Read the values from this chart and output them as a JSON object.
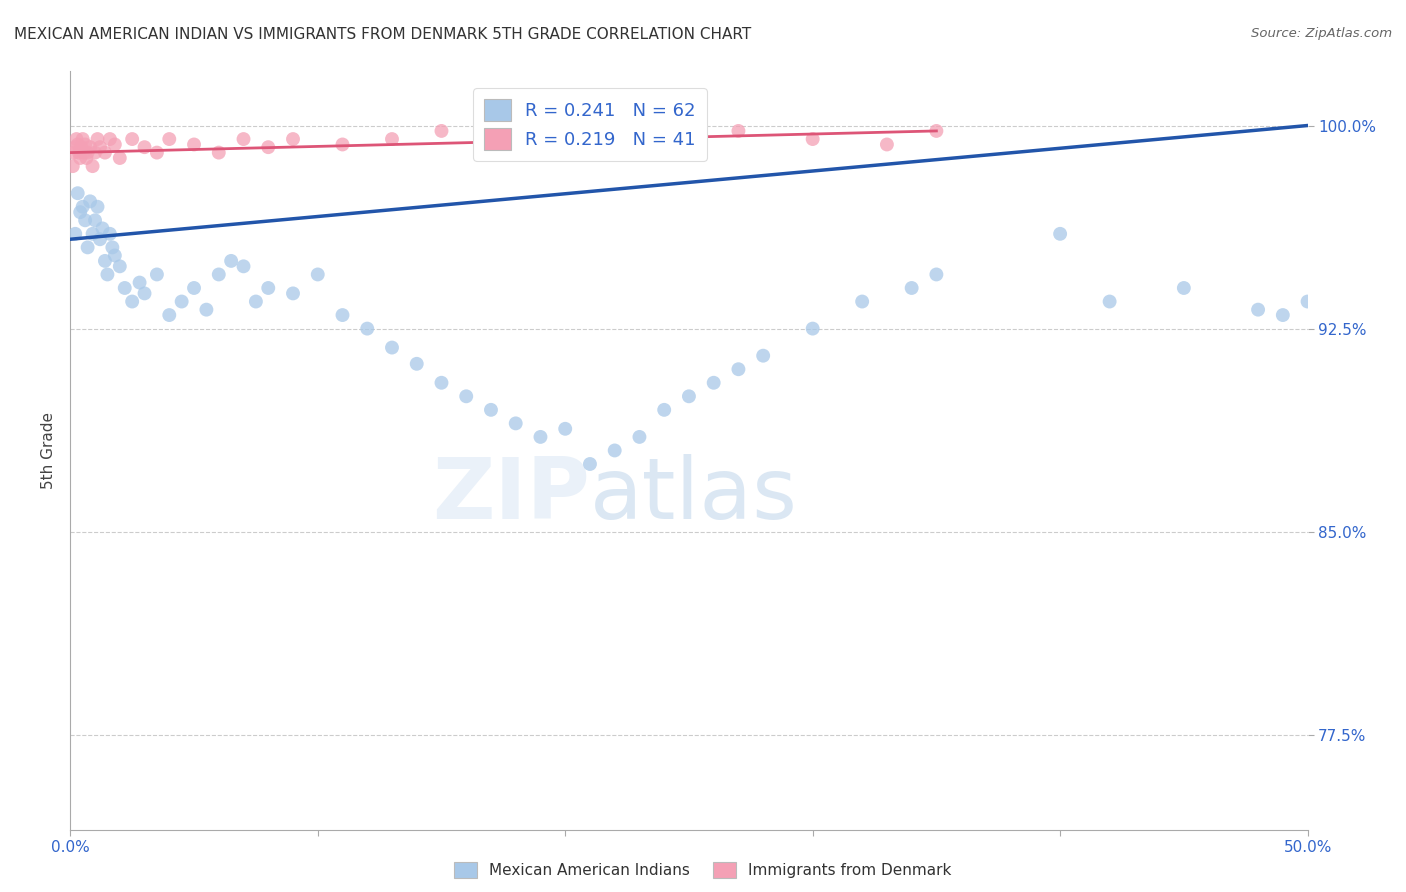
{
  "title": "MEXICAN AMERICAN INDIAN VS IMMIGRANTS FROM DENMARK 5TH GRADE CORRELATION CHART",
  "source": "Source: ZipAtlas.com",
  "ylabel": "5th Grade",
  "xlim": [
    0.0,
    50.0
  ],
  "ylim": [
    74.0,
    102.0
  ],
  "y_ticks": [
    77.5,
    85.0,
    92.5,
    100.0
  ],
  "y_tick_labels": [
    "77.5%",
    "85.0%",
    "92.5%",
    "100.0%"
  ],
  "blue_color": "#a8c8e8",
  "blue_line_color": "#2255aa",
  "pink_color": "#f4a0b5",
  "pink_line_color": "#dd5577",
  "R_blue": 0.241,
  "N_blue": 62,
  "R_pink": 0.219,
  "N_pink": 41,
  "watermark_zip": "ZIP",
  "watermark_atlas": "atlas",
  "grid_color": "#cccccc",
  "blue_line_x0": 0.0,
  "blue_line_y0": 95.8,
  "blue_line_x1": 50.0,
  "blue_line_y1": 100.0,
  "pink_line_x0": 0.0,
  "pink_line_y0": 99.0,
  "pink_line_x1": 35.0,
  "pink_line_y1": 99.8,
  "blue_points_x": [
    0.2,
    0.3,
    0.4,
    0.5,
    0.6,
    0.7,
    0.8,
    0.9,
    1.0,
    1.1,
    1.2,
    1.3,
    1.4,
    1.5,
    1.6,
    1.7,
    1.8,
    2.0,
    2.2,
    2.5,
    2.8,
    3.0,
    3.5,
    4.0,
    4.5,
    5.0,
    5.5,
    6.0,
    6.5,
    7.0,
    7.5,
    8.0,
    9.0,
    10.0,
    11.0,
    12.0,
    13.0,
    14.0,
    15.0,
    16.0,
    17.0,
    18.0,
    19.0,
    20.0,
    21.0,
    22.0,
    23.0,
    24.0,
    25.0,
    26.0,
    27.0,
    28.0,
    30.0,
    32.0,
    34.0,
    35.0,
    40.0,
    42.0,
    45.0,
    48.0,
    49.0,
    50.0
  ],
  "blue_points_y": [
    96.0,
    97.5,
    96.8,
    97.0,
    96.5,
    95.5,
    97.2,
    96.0,
    96.5,
    97.0,
    95.8,
    96.2,
    95.0,
    94.5,
    96.0,
    95.5,
    95.2,
    94.8,
    94.0,
    93.5,
    94.2,
    93.8,
    94.5,
    93.0,
    93.5,
    94.0,
    93.2,
    94.5,
    95.0,
    94.8,
    93.5,
    94.0,
    93.8,
    94.5,
    93.0,
    92.5,
    91.8,
    91.2,
    90.5,
    90.0,
    89.5,
    89.0,
    88.5,
    88.8,
    87.5,
    88.0,
    88.5,
    89.5,
    90.0,
    90.5,
    91.0,
    91.5,
    92.5,
    93.5,
    94.0,
    94.5,
    96.0,
    93.5,
    94.0,
    93.2,
    93.0,
    93.5
  ],
  "pink_points_x": [
    0.1,
    0.15,
    0.2,
    0.25,
    0.3,
    0.35,
    0.4,
    0.45,
    0.5,
    0.55,
    0.6,
    0.65,
    0.7,
    0.8,
    0.9,
    1.0,
    1.1,
    1.2,
    1.4,
    1.6,
    1.8,
    2.0,
    2.5,
    3.0,
    3.5,
    4.0,
    5.0,
    6.0,
    7.0,
    8.0,
    9.0,
    11.0,
    13.0,
    15.0,
    18.0,
    21.0,
    24.0,
    27.0,
    30.0,
    33.0,
    35.0
  ],
  "pink_points_y": [
    98.5,
    99.0,
    99.2,
    99.5,
    99.3,
    99.0,
    98.8,
    99.2,
    99.5,
    99.0,
    99.3,
    98.8,
    99.0,
    99.2,
    98.5,
    99.0,
    99.5,
    99.2,
    99.0,
    99.5,
    99.3,
    98.8,
    99.5,
    99.2,
    99.0,
    99.5,
    99.3,
    99.0,
    99.5,
    99.2,
    99.5,
    99.3,
    99.5,
    99.8,
    99.5,
    99.3,
    99.5,
    99.8,
    99.5,
    99.3,
    99.8
  ]
}
